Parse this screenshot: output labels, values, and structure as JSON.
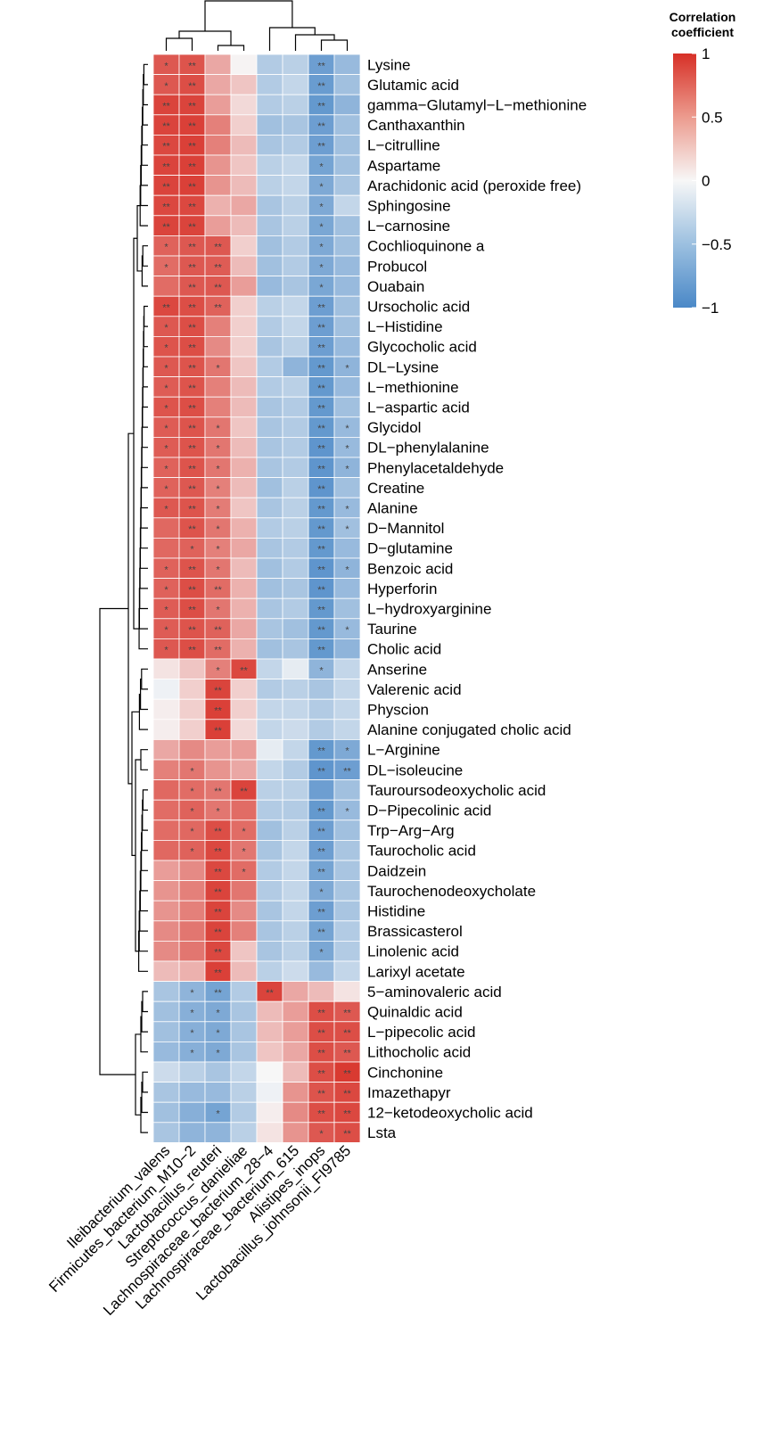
{
  "chart_data": {
    "type": "heatmap",
    "title": "",
    "legend": {
      "title_line1": "Correlation",
      "title_line2": "coefficient",
      "ticks": [
        "1",
        "0.5",
        "0",
        "−0.5",
        "−1"
      ],
      "min": -1,
      "max": 1,
      "placement": "top-right"
    },
    "colors": {
      "high": "#d73027",
      "mid": "#f7f7f7",
      "low": "#4a88c7",
      "grid": "#ffffff",
      "star": "#444444",
      "dendro": "#000000"
    },
    "columns": [
      "Ileibacterium_valens",
      "Firmicutes_bacterium_M10−2",
      "Lactobacillus_reuteri",
      "Streptococcus_danieliae",
      "Lachnospiraceae_bacterium_28−4",
      "Lachnospiraceae_bacterium_615",
      "Alistipes_inops",
      "Lactobacillus_johnsonii_FI9785"
    ],
    "rows": [
      "Lysine",
      "Glutamic acid",
      "gamma−Glutamyl−L−methionine",
      "Canthaxanthin",
      "L−citrulline",
      "Aspartame",
      "Arachidonic acid (peroxide free)",
      "Sphingosine",
      "L−carnosine",
      "Cochlioquinone a",
      "Probucol",
      "Ouabain",
      "Ursocholic acid",
      "L−Histidine",
      "Glycocholic acid",
      "DL−Lysine",
      "L−methionine",
      "L−aspartic acid",
      "Glycidol",
      "DL−phenylalanine",
      "Phenylacetaldehyde",
      "Creatine",
      "Alanine",
      "D−Mannitol",
      "D−glutamine",
      "Benzoic acid",
      "Hyperforin",
      "L−hydroxyarginine",
      "Taurine",
      "Cholic acid",
      "Anserine",
      "Valerenic acid",
      "Physcion",
      "Alanine conjugated cholic acid",
      "L−Arginine",
      "DL−isoleucine",
      "Tauroursodeoxycholic acid",
      "D−Pipecolinic acid",
      "Trp−Arg−Arg",
      "Taurocholic acid",
      "Daidzein",
      "Taurochenodeoxycholate",
      "Histidine",
      "Brassicasterol",
      "Linolenic acid",
      "Larixyl acetate",
      "5−aminovaleric acid",
      "Quinaldic acid",
      "L−pipecolic acid",
      "Lithocholic acid",
      "Cinchonine",
      "Imazethapyr",
      "12−ketodeoxycholic acid",
      "Lsta"
    ],
    "values": [
      [
        0.8,
        0.82,
        0.4,
        0.02,
        -0.4,
        -0.35,
        -0.8,
        -0.55
      ],
      [
        0.8,
        0.85,
        0.4,
        0.25,
        -0.4,
        -0.3,
        -0.82,
        -0.5
      ],
      [
        0.9,
        0.9,
        0.45,
        0.15,
        -0.4,
        -0.35,
        -0.85,
        -0.6
      ],
      [
        0.9,
        0.92,
        0.6,
        0.2,
        -0.5,
        -0.45,
        -0.8,
        -0.5
      ],
      [
        0.88,
        0.92,
        0.6,
        0.3,
        -0.45,
        -0.4,
        -0.8,
        -0.5
      ],
      [
        0.9,
        0.92,
        0.5,
        0.25,
        -0.35,
        -0.3,
        -0.75,
        -0.5
      ],
      [
        0.9,
        0.92,
        0.5,
        0.3,
        -0.35,
        -0.3,
        -0.7,
        -0.45
      ],
      [
        0.88,
        0.88,
        0.35,
        0.4,
        -0.45,
        -0.35,
        -0.7,
        -0.3
      ],
      [
        0.9,
        0.9,
        0.45,
        0.3,
        -0.45,
        -0.35,
        -0.72,
        -0.5
      ],
      [
        0.75,
        0.8,
        0.8,
        0.2,
        -0.5,
        -0.4,
        -0.7,
        -0.5
      ],
      [
        0.7,
        0.8,
        0.78,
        0.3,
        -0.5,
        -0.4,
        -0.7,
        -0.55
      ],
      [
        0.7,
        0.8,
        0.8,
        0.45,
        -0.55,
        -0.45,
        -0.72,
        -0.55
      ],
      [
        0.88,
        0.85,
        0.75,
        0.2,
        -0.35,
        -0.3,
        -0.8,
        -0.5
      ],
      [
        0.8,
        0.85,
        0.6,
        0.2,
        -0.4,
        -0.3,
        -0.8,
        -0.5
      ],
      [
        0.82,
        0.85,
        0.55,
        0.2,
        -0.45,
        -0.35,
        -0.8,
        -0.55
      ],
      [
        0.8,
        0.82,
        0.65,
        0.25,
        -0.4,
        -0.6,
        -0.85,
        -0.6
      ],
      [
        0.78,
        0.82,
        0.6,
        0.3,
        -0.4,
        -0.35,
        -0.85,
        -0.55
      ],
      [
        0.82,
        0.85,
        0.6,
        0.3,
        -0.45,
        -0.4,
        -0.85,
        -0.5
      ],
      [
        0.78,
        0.82,
        0.65,
        0.25,
        -0.45,
        -0.4,
        -0.85,
        -0.55
      ],
      [
        0.78,
        0.82,
        0.65,
        0.3,
        -0.45,
        -0.4,
        -0.88,
        -0.55
      ],
      [
        0.75,
        0.82,
        0.65,
        0.35,
        -0.45,
        -0.4,
        -0.88,
        -0.6
      ],
      [
        0.75,
        0.8,
        0.6,
        0.3,
        -0.5,
        -0.35,
        -0.88,
        -0.5
      ],
      [
        0.8,
        0.82,
        0.62,
        0.25,
        -0.45,
        -0.35,
        -0.85,
        -0.55
      ],
      [
        0.72,
        0.82,
        0.65,
        0.35,
        -0.4,
        -0.35,
        -0.85,
        -0.5
      ],
      [
        0.72,
        0.75,
        0.6,
        0.4,
        -0.45,
        -0.4,
        -0.85,
        -0.55
      ],
      [
        0.75,
        0.82,
        0.65,
        0.3,
        -0.5,
        -0.4,
        -0.88,
        -0.6
      ],
      [
        0.75,
        0.85,
        0.7,
        0.35,
        -0.5,
        -0.45,
        -0.88,
        -0.55
      ],
      [
        0.78,
        0.85,
        0.65,
        0.35,
        -0.45,
        -0.4,
        -0.85,
        -0.5
      ],
      [
        0.78,
        0.82,
        0.75,
        0.4,
        -0.45,
        -0.5,
        -0.85,
        -0.55
      ],
      [
        0.8,
        0.85,
        0.7,
        0.35,
        -0.5,
        -0.45,
        -0.85,
        -0.6
      ],
      [
        0.1,
        0.25,
        0.6,
        0.88,
        -0.3,
        -0.1,
        -0.6,
        -0.3
      ],
      [
        -0.05,
        0.2,
        0.9,
        0.2,
        -0.4,
        -0.35,
        -0.45,
        -0.3
      ],
      [
        0.05,
        0.2,
        0.92,
        0.2,
        -0.3,
        -0.3,
        -0.4,
        -0.3
      ],
      [
        0.05,
        0.2,
        0.92,
        0.15,
        -0.3,
        -0.25,
        -0.4,
        -0.3
      ],
      [
        0.4,
        0.55,
        0.45,
        0.45,
        -0.1,
        -0.3,
        -0.85,
        -0.7
      ],
      [
        0.6,
        0.65,
        0.5,
        0.4,
        -0.3,
        -0.4,
        -0.88,
        -0.8
      ],
      [
        0.72,
        0.7,
        0.65,
        0.9,
        -0.35,
        -0.35,
        -0.8,
        -0.5
      ],
      [
        0.7,
        0.75,
        0.65,
        0.7,
        -0.4,
        -0.4,
        -0.85,
        -0.55
      ],
      [
        0.7,
        0.72,
        0.85,
        0.7,
        -0.5,
        -0.35,
        -0.8,
        -0.5
      ],
      [
        0.72,
        0.75,
        0.88,
        0.65,
        -0.45,
        -0.3,
        -0.8,
        -0.45
      ],
      [
        0.45,
        0.55,
        0.88,
        0.7,
        -0.4,
        -0.3,
        -0.75,
        -0.45
      ],
      [
        0.5,
        0.6,
        0.9,
        0.65,
        -0.4,
        -0.3,
        -0.7,
        -0.45
      ],
      [
        0.5,
        0.6,
        0.9,
        0.55,
        -0.45,
        -0.3,
        -0.8,
        -0.45
      ],
      [
        0.55,
        0.65,
        0.9,
        0.6,
        -0.45,
        -0.35,
        -0.75,
        -0.4
      ],
      [
        0.55,
        0.65,
        0.88,
        0.25,
        -0.45,
        -0.35,
        -0.72,
        -0.4
      ],
      [
        0.3,
        0.35,
        0.92,
        0.3,
        -0.35,
        -0.25,
        -0.55,
        -0.3
      ],
      [
        -0.45,
        -0.6,
        -0.75,
        -0.4,
        0.9,
        0.4,
        0.3,
        0.1
      ],
      [
        -0.5,
        -0.65,
        -0.7,
        -0.45,
        0.3,
        0.45,
        0.85,
        0.8
      ],
      [
        -0.5,
        -0.65,
        -0.7,
        -0.45,
        0.3,
        0.45,
        0.85,
        0.85
      ],
      [
        -0.55,
        -0.65,
        -0.7,
        -0.45,
        0.25,
        0.4,
        0.85,
        0.8
      ],
      [
        -0.25,
        -0.35,
        -0.45,
        -0.3,
        0.0,
        0.3,
        0.85,
        0.95
      ],
      [
        -0.45,
        -0.55,
        -0.55,
        -0.35,
        -0.05,
        0.5,
        0.82,
        0.88
      ],
      [
        -0.5,
        -0.65,
        -0.75,
        -0.4,
        0.05,
        0.55,
        0.85,
        0.88
      ],
      [
        -0.45,
        -0.6,
        -0.6,
        -0.35,
        0.1,
        0.5,
        0.8,
        0.85
      ]
    ],
    "significance": [
      [
        "*",
        "**",
        "",
        "",
        "",
        "",
        "**",
        ""
      ],
      [
        "*",
        "**",
        "",
        "",
        "",
        "",
        "**",
        ""
      ],
      [
        "**",
        "**",
        "",
        "",
        "",
        "",
        "**",
        ""
      ],
      [
        "**",
        "**",
        "",
        "",
        "",
        "",
        "**",
        ""
      ],
      [
        "**",
        "**",
        "",
        "",
        "",
        "",
        "**",
        ""
      ],
      [
        "**",
        "**",
        "",
        "",
        "",
        "",
        "*",
        ""
      ],
      [
        "**",
        "**",
        "",
        "",
        "",
        "",
        "*",
        ""
      ],
      [
        "**",
        "**",
        "",
        "",
        "",
        "",
        "*",
        ""
      ],
      [
        "**",
        "**",
        "",
        "",
        "",
        "",
        "*",
        ""
      ],
      [
        "*",
        "**",
        "**",
        "",
        "",
        "",
        "*",
        ""
      ],
      [
        "*",
        "**",
        "**",
        "",
        "",
        "",
        "*",
        ""
      ],
      [
        "",
        "**",
        "**",
        "",
        "",
        "",
        "*",
        ""
      ],
      [
        "**",
        "**",
        "**",
        "",
        "",
        "",
        "**",
        ""
      ],
      [
        "*",
        "**",
        "",
        "",
        "",
        "",
        "**",
        ""
      ],
      [
        "*",
        "**",
        "",
        "",
        "",
        "",
        "**",
        ""
      ],
      [
        "*",
        "**",
        "*",
        "",
        "",
        "",
        "**",
        "*"
      ],
      [
        "*",
        "**",
        "",
        "",
        "",
        "",
        "**",
        ""
      ],
      [
        "*",
        "**",
        "",
        "",
        "",
        "",
        "**",
        ""
      ],
      [
        "*",
        "**",
        "*",
        "",
        "",
        "",
        "**",
        "*"
      ],
      [
        "*",
        "**",
        "*",
        "",
        "",
        "",
        "**",
        "*"
      ],
      [
        "*",
        "**",
        "*",
        "",
        "",
        "",
        "**",
        "*"
      ],
      [
        "*",
        "**",
        "*",
        "",
        "",
        "",
        "**",
        ""
      ],
      [
        "*",
        "**",
        "*",
        "",
        "",
        "",
        "**",
        "*"
      ],
      [
        "",
        "**",
        "*",
        "",
        "",
        "",
        "**",
        "*"
      ],
      [
        "",
        "*",
        "*",
        "",
        "",
        "",
        "**",
        ""
      ],
      [
        "*",
        "**",
        "*",
        "",
        "",
        "",
        "**",
        "*"
      ],
      [
        "*",
        "**",
        "**",
        "",
        "",
        "",
        "**",
        ""
      ],
      [
        "*",
        "**",
        "*",
        "",
        "",
        "",
        "**",
        ""
      ],
      [
        "*",
        "**",
        "**",
        "",
        "",
        "",
        "**",
        "*"
      ],
      [
        "*",
        "**",
        "**",
        "",
        "",
        "",
        "**",
        ""
      ],
      [
        "",
        "",
        "*",
        "**",
        "",
        "",
        "*",
        ""
      ],
      [
        "",
        "",
        "**",
        "",
        "",
        "",
        "",
        ""
      ],
      [
        "",
        "",
        "**",
        "",
        "",
        "",
        "",
        ""
      ],
      [
        "",
        "",
        "**",
        "",
        "",
        "",
        "",
        ""
      ],
      [
        "",
        "",
        "",
        "",
        "",
        "",
        "**",
        "*"
      ],
      [
        "",
        "*",
        "",
        "",
        "",
        "",
        "**",
        "**"
      ],
      [
        "",
        "*",
        "**",
        "**",
        "",
        "",
        "",
        ""
      ],
      [
        "",
        "*",
        "*",
        "",
        "",
        "",
        "**",
        "*"
      ],
      [
        "",
        "*",
        "**",
        "*",
        "",
        "",
        "**",
        ""
      ],
      [
        "",
        "*",
        "**",
        "*",
        "",
        "",
        "**",
        ""
      ],
      [
        "",
        "",
        "**",
        "*",
        "",
        "",
        "**",
        ""
      ],
      [
        "",
        "",
        "**",
        "",
        "",
        "",
        "*",
        ""
      ],
      [
        "",
        "",
        "**",
        "",
        "",
        "",
        "**",
        ""
      ],
      [
        "",
        "",
        "**",
        "",
        "",
        "",
        "**",
        ""
      ],
      [
        "",
        "",
        "**",
        "",
        "",
        "",
        "*",
        ""
      ],
      [
        "",
        "",
        "**",
        "",
        "",
        "",
        "",
        ""
      ],
      [
        "",
        "*",
        "**",
        "",
        "**",
        "",
        "",
        ""
      ],
      [
        "",
        "*",
        "*",
        "",
        "",
        "",
        "**",
        "**"
      ],
      [
        "",
        "*",
        "*",
        "",
        "",
        "",
        "**",
        "**"
      ],
      [
        "",
        "*",
        "*",
        "",
        "",
        "",
        "**",
        "**"
      ],
      [
        "",
        "",
        "",
        "",
        "",
        "",
        "**",
        "**"
      ],
      [
        "",
        "",
        "",
        "",
        "",
        "",
        "**",
        "**"
      ],
      [
        "",
        "",
        "*",
        "",
        "",
        "",
        "**",
        "**"
      ],
      [
        "",
        "",
        "",
        "",
        "",
        "",
        "*",
        "**"
      ]
    ]
  }
}
